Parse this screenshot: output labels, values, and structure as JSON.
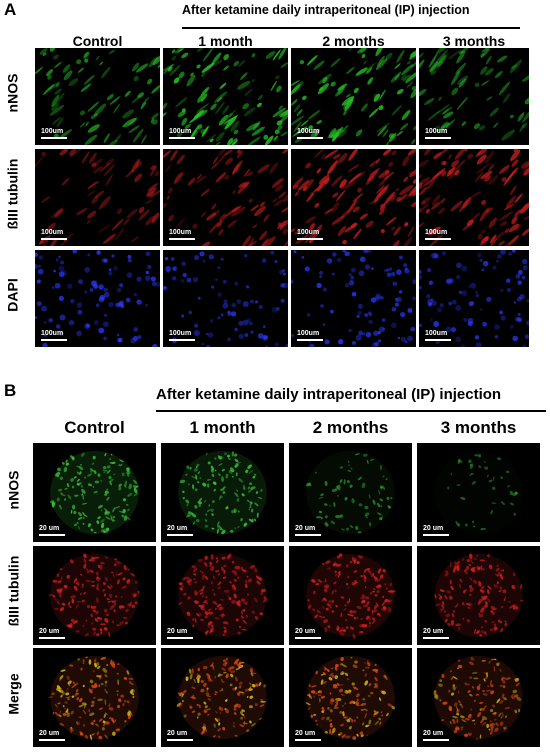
{
  "panel_a": {
    "letter": "A",
    "header": "After ketamine daily intraperitoneal (IP) injection",
    "columns": [
      "Control",
      "1 month",
      "2 months",
      "3 months"
    ],
    "rows": [
      "nNOS",
      "ßIII tubulin",
      "DAPI"
    ],
    "scale_label": "100um",
    "row_colors": [
      "#26c426",
      "#c41c1c",
      "#2a3aff"
    ],
    "row_intensity": [
      [
        0.55,
        0.85,
        0.8,
        0.45
      ],
      [
        0.45,
        0.6,
        0.9,
        0.85
      ],
      [
        0.8,
        0.65,
        0.75,
        0.7
      ]
    ]
  },
  "panel_b": {
    "letter": "B",
    "header": "After ketamine daily intraperitoneal (IP) injection",
    "columns": [
      "Control",
      "1 month",
      "2 months",
      "3 months"
    ],
    "rows": [
      "nNOS",
      "ßIII tubulin",
      "Merge"
    ],
    "scale_label": "20 um",
    "row_colors": [
      "#3fd13f",
      "#d42020",
      "#d84a18"
    ],
    "row_intensity": [
      [
        0.75,
        0.7,
        0.3,
        0.12
      ],
      [
        0.8,
        0.8,
        0.85,
        0.75
      ],
      [
        0.85,
        0.85,
        0.85,
        0.75
      ]
    ]
  }
}
